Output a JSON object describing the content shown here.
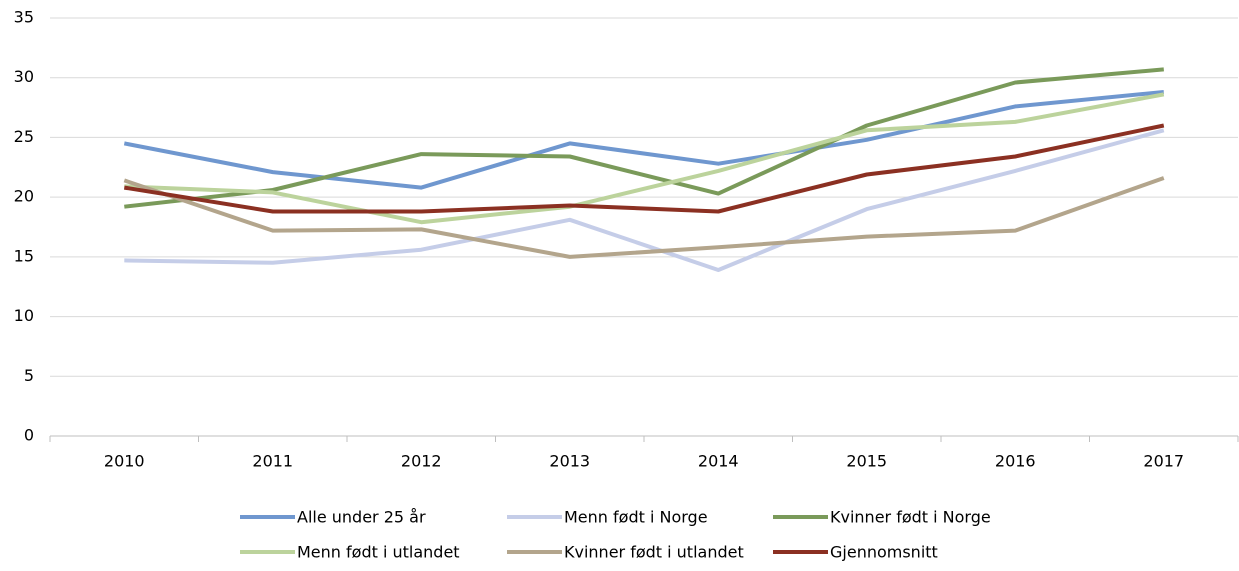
{
  "chart_data": {
    "type": "line",
    "categories": [
      "2010",
      "2011",
      "2012",
      "2013",
      "2014",
      "2015",
      "2016",
      "2017"
    ],
    "series": [
      {
        "name": "Alle under 25 år",
        "color": "#6f97cf",
        "values": [
          24.5,
          22.1,
          20.8,
          24.5,
          22.8,
          24.8,
          27.6,
          28.8
        ]
      },
      {
        "name": "Menn født i Norge",
        "color": "#c5cde8",
        "values": [
          14.7,
          14.5,
          15.6,
          18.1,
          13.9,
          19.0,
          22.2,
          25.6
        ]
      },
      {
        "name": "Kvinner født i Norge",
        "color": "#7a9a5a",
        "values": [
          19.2,
          20.6,
          23.6,
          23.4,
          20.3,
          26.0,
          29.6,
          30.7
        ]
      },
      {
        "name": "Menn født i utlandet",
        "color": "#bcd39c",
        "values": [
          20.9,
          20.4,
          17.9,
          19.2,
          22.2,
          25.6,
          26.3,
          28.6
        ]
      },
      {
        "name": "Kvinner født i utlandet",
        "color": "#b3a58c",
        "values": [
          21.4,
          17.2,
          17.3,
          15.0,
          15.8,
          16.7,
          17.2,
          21.6
        ]
      },
      {
        "name": "Gjennomsnitt",
        "color": "#8b3022",
        "values": [
          20.8,
          18.8,
          18.8,
          19.3,
          18.8,
          21.9,
          23.4,
          26.0
        ]
      }
    ],
    "ylim": [
      0,
      35
    ],
    "yticks": [
      0,
      5,
      10,
      15,
      20,
      25,
      30,
      35
    ],
    "grid": true,
    "legend": "bottom"
  }
}
